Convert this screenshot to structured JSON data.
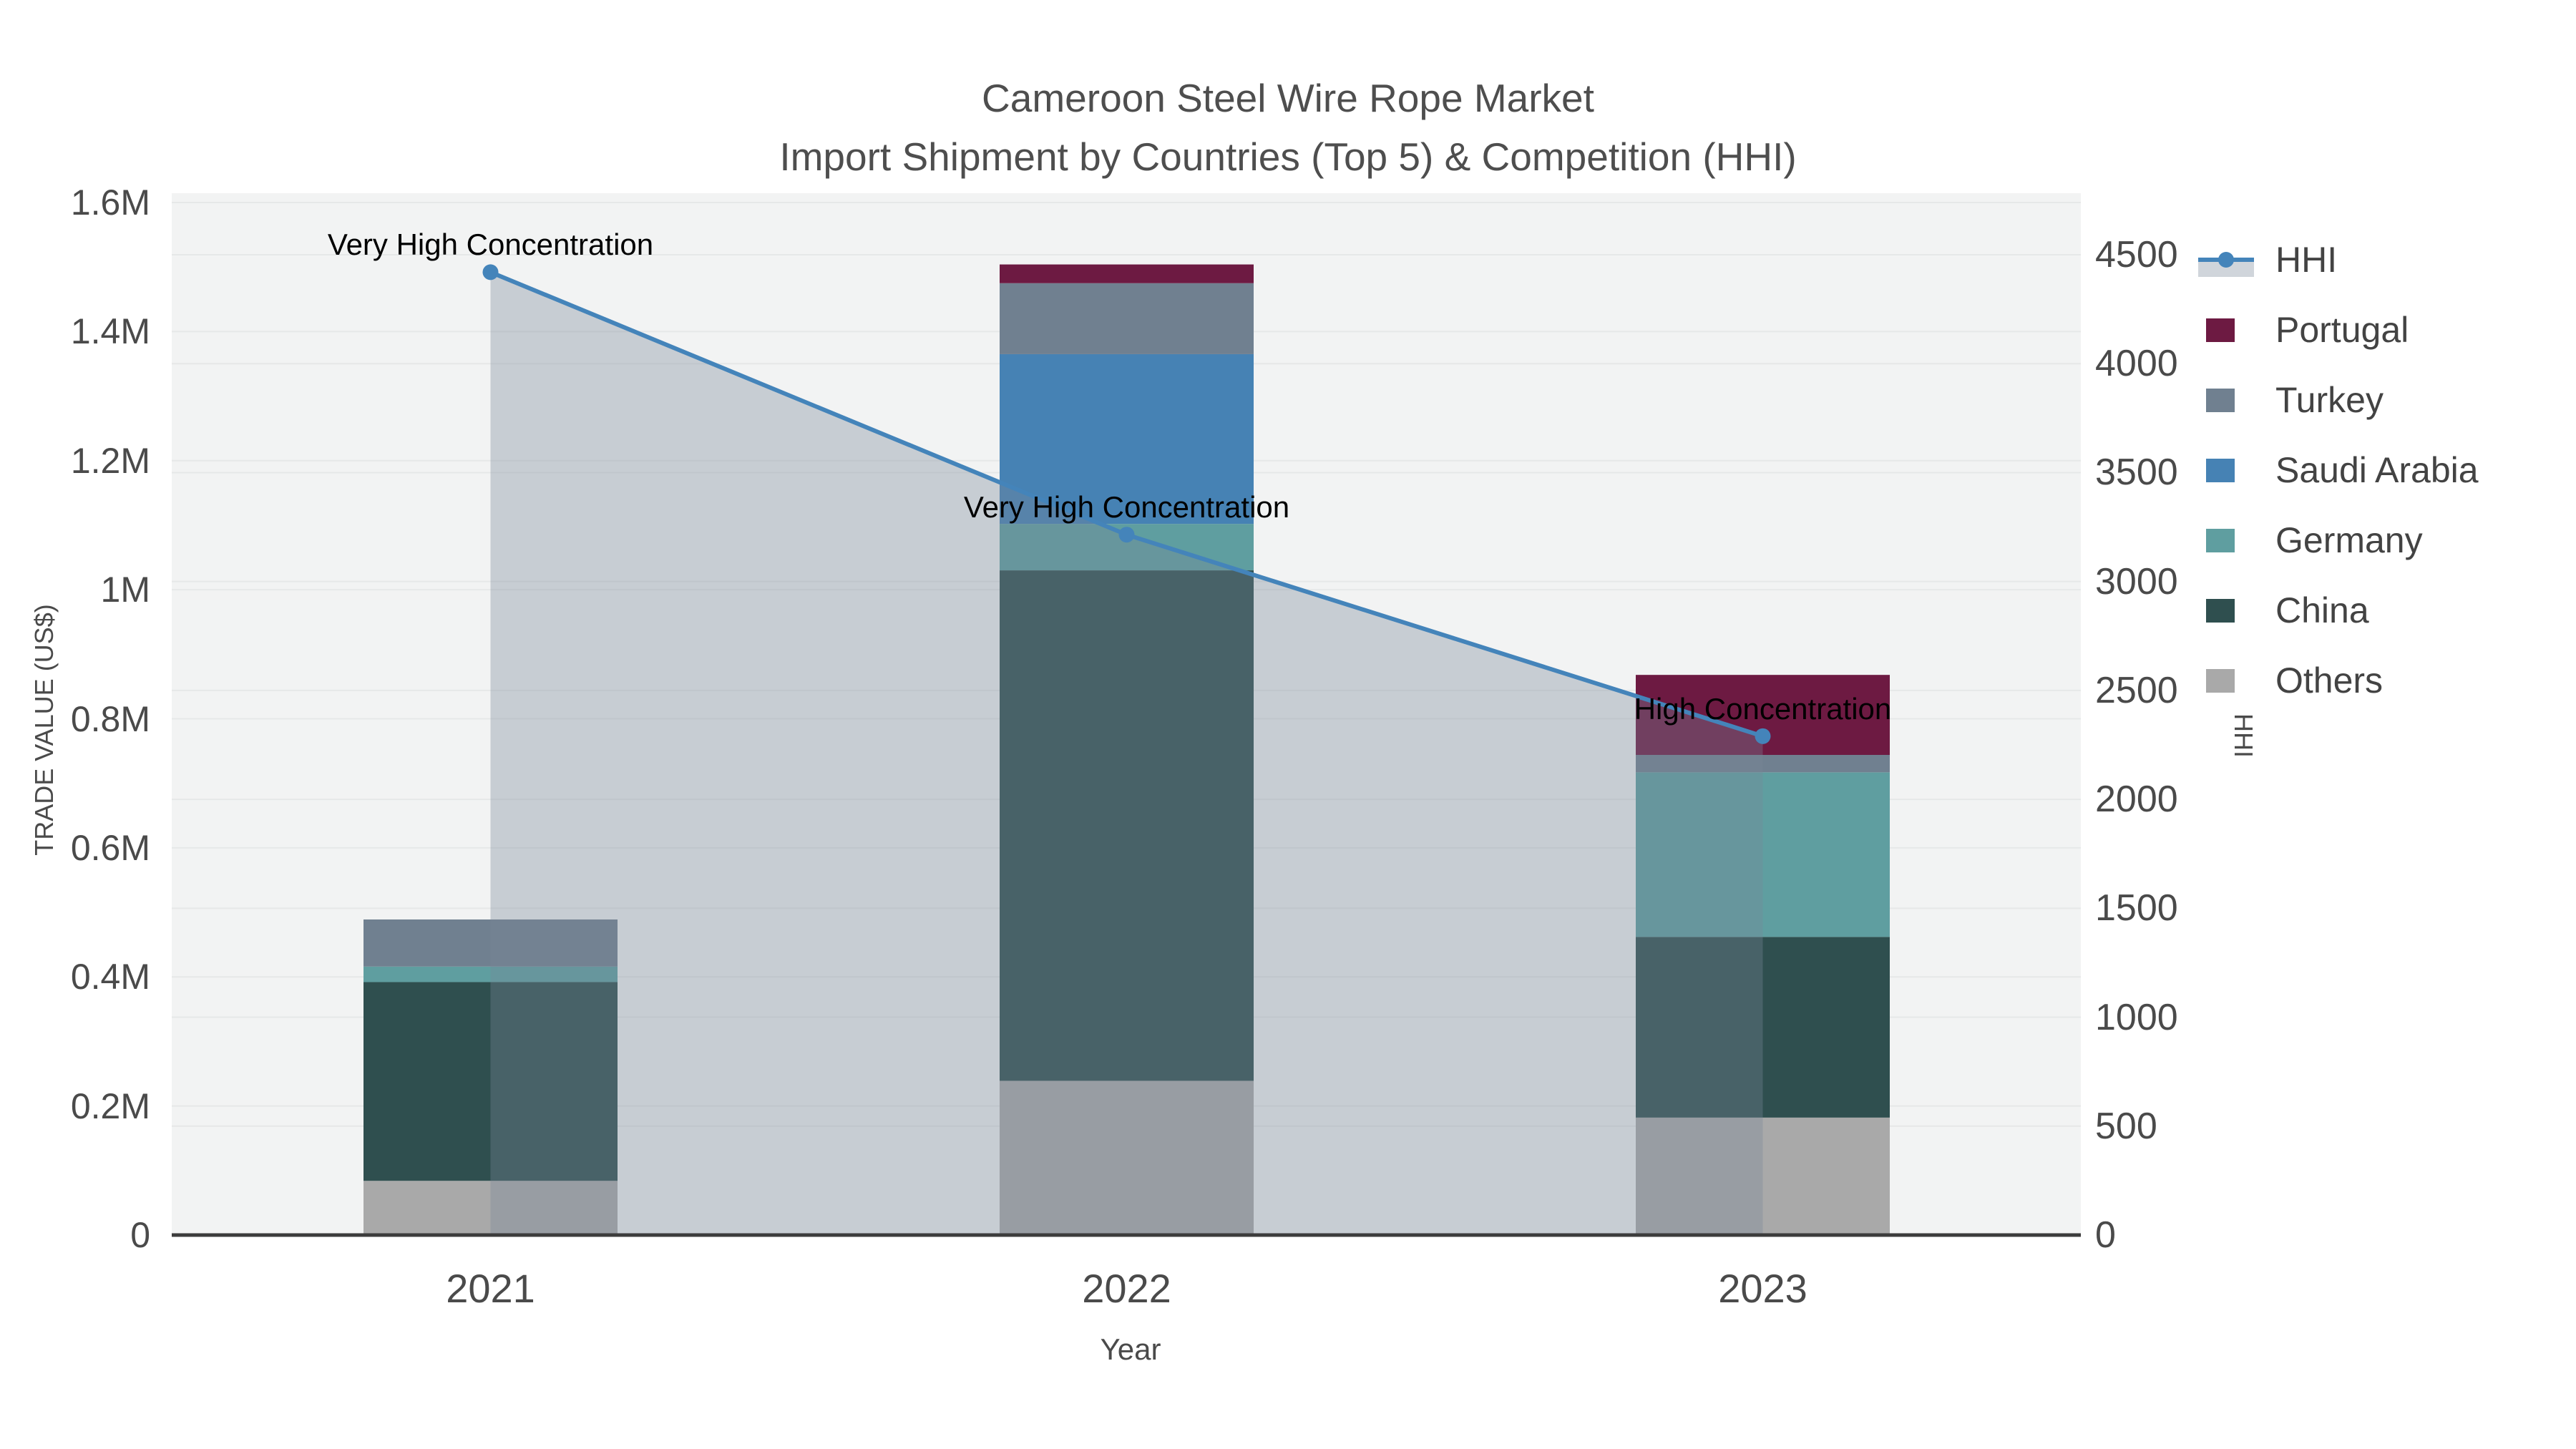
{
  "title": {
    "line1": "Cameroon Steel Wire Rope Market",
    "line2": "Import Shipment by Countries (Top 5) & Competition (HHI)"
  },
  "axes": {
    "y_left": {
      "title": "TRADE VALUE (US$)",
      "tick_labels": [
        "0",
        "0.2M",
        "0.4M",
        "0.6M",
        "0.8M",
        "1M",
        "1.2M",
        "1.4M",
        "1.6M"
      ],
      "range": [
        0,
        1600000
      ]
    },
    "y_right": {
      "title": "HHI",
      "tick_labels": [
        "0",
        "500",
        "1000",
        "1500",
        "2000",
        "2500",
        "3000",
        "3500",
        "4000",
        "4500"
      ],
      "tick_range": [
        0,
        4500
      ]
    },
    "x": {
      "title": "Year",
      "tick_labels": [
        "2021",
        "2022",
        "2023"
      ]
    }
  },
  "legend": {
    "items": [
      {
        "label": "HHI",
        "swatch": "line-area-marker",
        "color": "#4484BA"
      },
      {
        "label": "Portugal",
        "swatch": "square",
        "color": "#6D1A42"
      },
      {
        "label": "Turkey",
        "swatch": "square",
        "color": "#708090"
      },
      {
        "label": "Saudi Arabia",
        "swatch": "square",
        "color": "#4682B4"
      },
      {
        "label": "Germany",
        "swatch": "square",
        "color": "#5F9EA0"
      },
      {
        "label": "China",
        "swatch": "square",
        "color": "#2F4F4F"
      },
      {
        "label": "Others",
        "swatch": "square",
        "color": "#A9A9A9"
      }
    ]
  },
  "annotations": [
    {
      "text": "Very High Concentration",
      "category": "2021"
    },
    {
      "text": "Very High Concentration",
      "category": "2022"
    },
    {
      "text": "High Concentration",
      "category": "2023"
    }
  ],
  "chart_data": {
    "type": "bar",
    "stacked": true,
    "categories": [
      "2021",
      "2022",
      "2023"
    ],
    "series": [
      {
        "name": "Others",
        "color": "#A9A9A9",
        "values": [
          84000,
          239000,
          182000
        ]
      },
      {
        "name": "China",
        "color": "#2F4F4F",
        "values": [
          308000,
          791000,
          280000
        ]
      },
      {
        "name": "Germany",
        "color": "#5F9EA0",
        "values": [
          24000,
          72000,
          255000
        ]
      },
      {
        "name": "Saudi Arabia",
        "color": "#4682B4",
        "values": [
          0,
          263000,
          0
        ]
      },
      {
        "name": "Turkey",
        "color": "#708090",
        "values": [
          73000,
          110000,
          27000
        ]
      },
      {
        "name": "Portugal",
        "color": "#6D1A42",
        "values": [
          0,
          29000,
          124000
        ]
      }
    ],
    "bar_totals": [
      489000,
      1504000,
      868000
    ],
    "line_series": {
      "name": "HHI",
      "axis": "right",
      "color": "#4484BA",
      "area_fill": "rgba(119,136,153,0.35)",
      "values": [
        4420,
        3215,
        2290
      ]
    },
    "title": "Cameroon Steel Wire Rope Market — Import Shipment by Countries (Top 5) & Competition (HHI)",
    "xlabel": "Year",
    "ylabel_left": "TRADE VALUE (US$)",
    "ylabel_right": "HHI",
    "ylim_left": [
      0,
      1600000
    ],
    "ylim_right_ticks": [
      0,
      4500
    ],
    "grid": true,
    "legend_position": "right"
  },
  "colors": {
    "plot_bg": "#F2F3F3",
    "grid": "#E6E8E8",
    "baseline": "#3C3C3C",
    "tick_text": "#4A4A4A",
    "annotation_text": "#000000"
  }
}
